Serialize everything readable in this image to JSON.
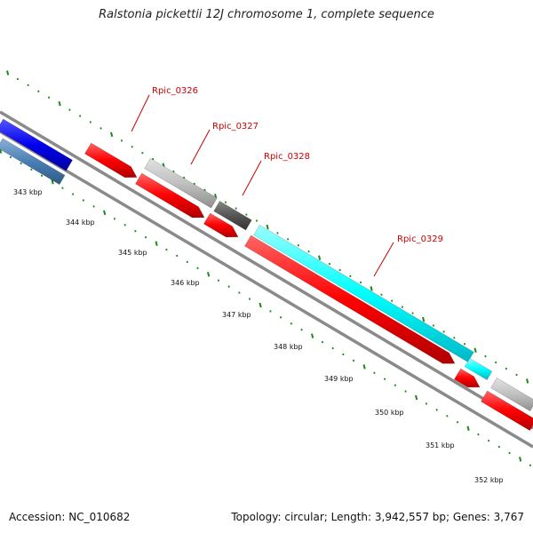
{
  "title": "Ralstonia pickettii 12J chromosome 1, complete sequence",
  "footer": {
    "accession": "Accession: NC_010682",
    "summary": "Topology: circular; Length: 3,942,557 bp; Genes: 3,767"
  },
  "colors": {
    "forward_gene": "#ff0000",
    "reverse_gene_grey": "#c0c0c0",
    "reverse_gene_dark": "#555555",
    "reverse_gene_cyan": "#00ffff",
    "blue_gene": "#0000ee",
    "steel_gene": "#4a7fb5",
    "backbone": "#888888",
    "ticks": "#1a8a1a",
    "labels": "#cc0000"
  },
  "scale_labels": [
    "343 kbp",
    "344 kbp",
    "345 kbp",
    "346 kbp",
    "347 kbp",
    "348 kbp",
    "349 kbp",
    "350 kbp",
    "351 kbp",
    "352 kbp"
  ],
  "gene_labels": [
    "Rpic_0326",
    "Rpic_0327",
    "Rpic_0328",
    "Rpic_0329"
  ]
}
